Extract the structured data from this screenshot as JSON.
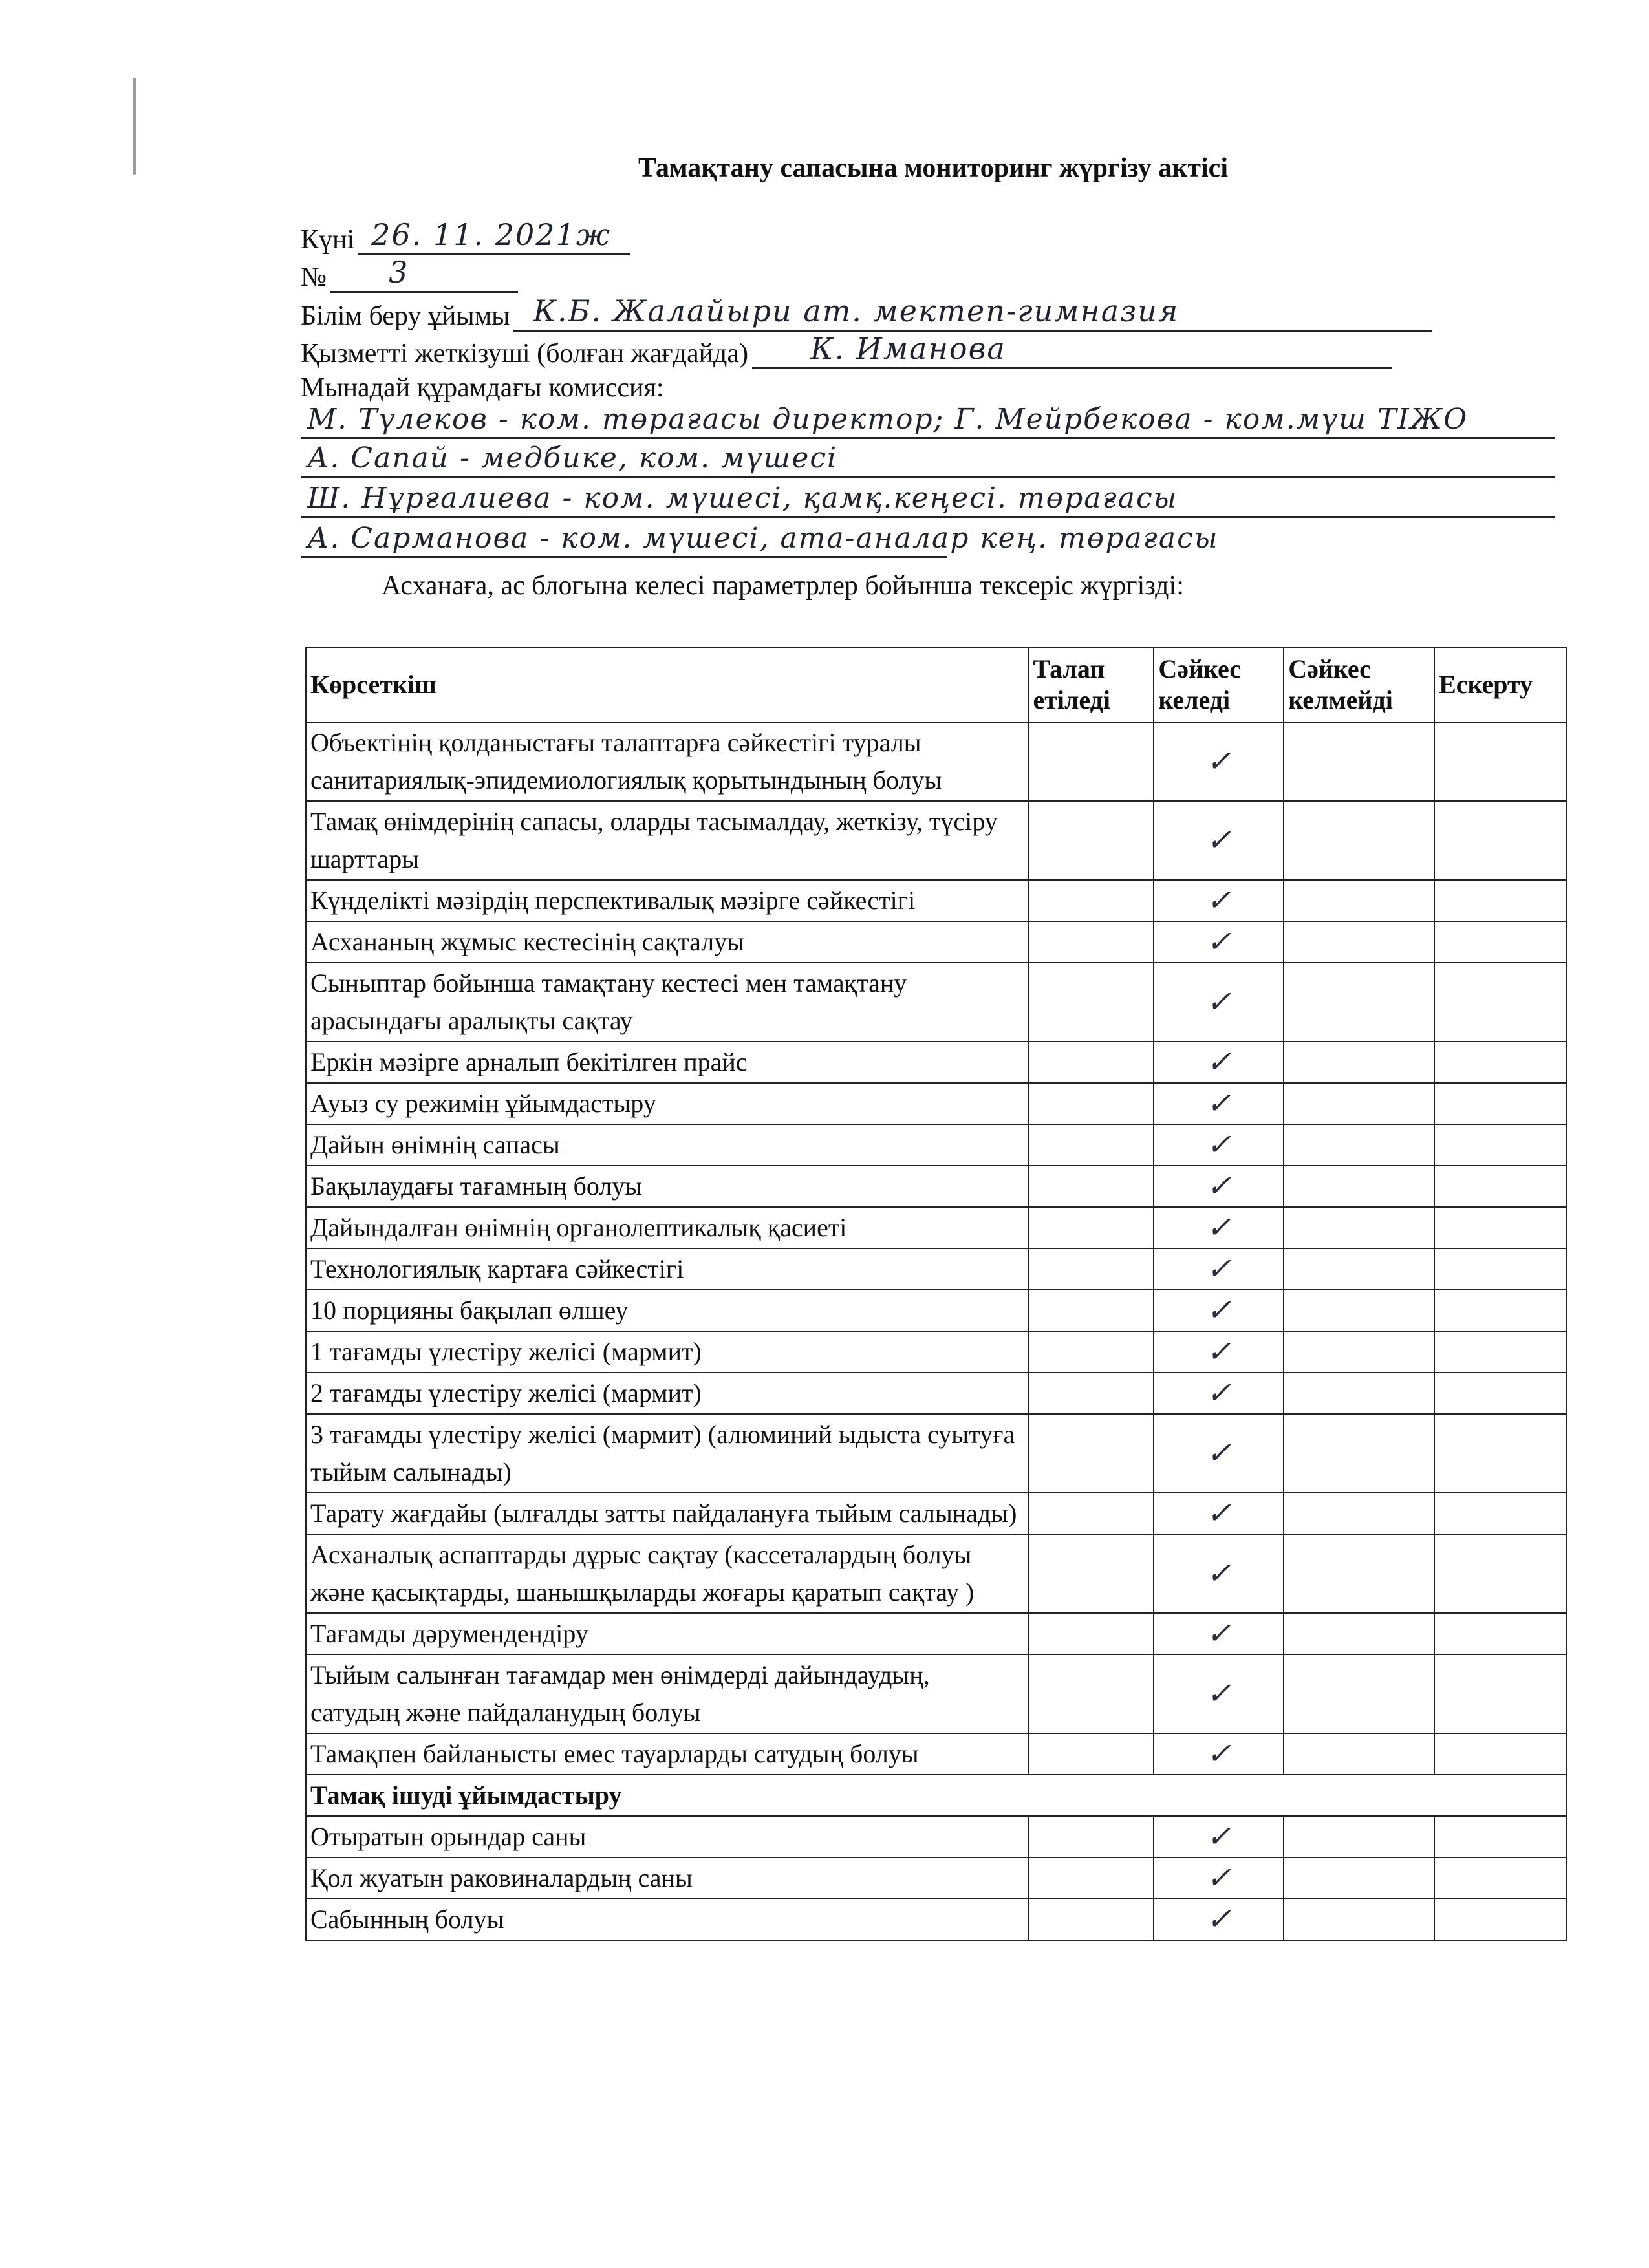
{
  "title": "Тамақтану сапасына мониторинг жүргізу актісі",
  "fields": {
    "date_label": "Күні",
    "date_value": "26. 11. 2021ж",
    "number_label": "№",
    "number_value": "3",
    "org_label": "Білім беру ұйымы",
    "org_value": "К.Б. Жалайыри ат. мектеп-гимназия",
    "provider_label": "Қызметті жеткізуші (болған жағдайда)",
    "provider_value": "К. Иманова",
    "commission_label": "Мынадай құрамдағы комиссия:",
    "commission_lines": [
      "М. Түлеков - ком. төрағасы директор; Г. Мейрбекова - ком.мүш ТІЖО",
      "А. Сапай - медбике, ком. мүшесі",
      "Ш. Нұрғалиева - ком. мүшесі, қамқ.кеңесі. төрағасы",
      "А. Сарманова - ком. мүшесі, ата-аналар кең. төрағасы"
    ],
    "intro": "Асханаға, ас блогына келесі параметрлер бойынша тексеріс жүргізді:"
  },
  "table": {
    "headers": [
      "Көрсеткіш",
      "Талап етіледі",
      "Сәйкес келеді",
      "Сәйкес келмейді",
      "Ескерту"
    ],
    "rows": [
      {
        "label": "Объектінің қолданыстағы талаптарға сәйкестігі туралы санитариялық-эпидемиологиялық қорытындының болуы",
        "complies": "✓"
      },
      {
        "label": "Тамақ өнімдерінің сапасы, оларды тасымалдау, жеткізу, түсіру шарттары",
        "complies": "✓"
      },
      {
        "label": "Күнделікті мәзірдің перспективалық мәзірге сәйкестігі",
        "complies": "✓"
      },
      {
        "label": "Асхананың жұмыс кестесінің сақталуы",
        "complies": "✓"
      },
      {
        "label": "Сыныптар бойынша тамақтану кестесі мен тамақтану арасындағы аралықты сақтау",
        "complies": "✓"
      },
      {
        "label": "Еркін мәзірге арналып бекітілген прайс",
        "complies": "✓"
      },
      {
        "label": "Ауыз су режимін ұйымдастыру",
        "complies": "✓"
      },
      {
        "label": "Дайын өнімнің сапасы",
        "complies": "✓"
      },
      {
        "label": "Бақылаудағы тағамның болуы",
        "complies": "✓"
      },
      {
        "label": "Дайындалған өнімнің органолептикалық  қасиеті",
        "complies": "✓"
      },
      {
        "label": "Технологиялық картаға сәйкестігі",
        "complies": "✓"
      },
      {
        "label": "10 порцияны бақылап өлшеу",
        "complies": "✓"
      },
      {
        "label": "1 тағамды үлестіру желісі  (мармит)",
        "complies": "✓"
      },
      {
        "label": "2 тағамды үлестіру желісі  (мармит)",
        "complies": "✓"
      },
      {
        "label": "3 тағамды үлестіру желісі  (мармит) (алюминий ыдыста суытуға тыйым салынады)",
        "complies": "✓"
      },
      {
        "label": "Тарату жағдайы (ылғалды затты пайдалануға тыйым салынады)",
        "complies": "✓"
      },
      {
        "label": "Асханалық аспаптарды дұрыс сақтау (кассеталардың болуы және қасықтарды, шанышқыларды жоғары қаратып сақтау )",
        "complies": "✓"
      },
      {
        "label": "Тағамды дәрумендендіру",
        "complies": "✓"
      },
      {
        "label": "Тыйым салынған тағамдар мен өнімдерді дайындаудың, сатудың және пайдаланудың болуы",
        "complies": "✓"
      },
      {
        "label": "Тамақпен байланысты емес тауарларды сатудың болуы",
        "complies": "✓"
      }
    ],
    "section_title": "Тамақ ішуді ұйымдастыру",
    "section_rows": [
      {
        "label": "Отыратын орындар саны",
        "complies": "✓"
      },
      {
        "label": "Қол жуатын раковиналардың саны",
        "complies": "✓"
      },
      {
        "label": "Сабынның болуы",
        "complies": "✓"
      }
    ]
  }
}
